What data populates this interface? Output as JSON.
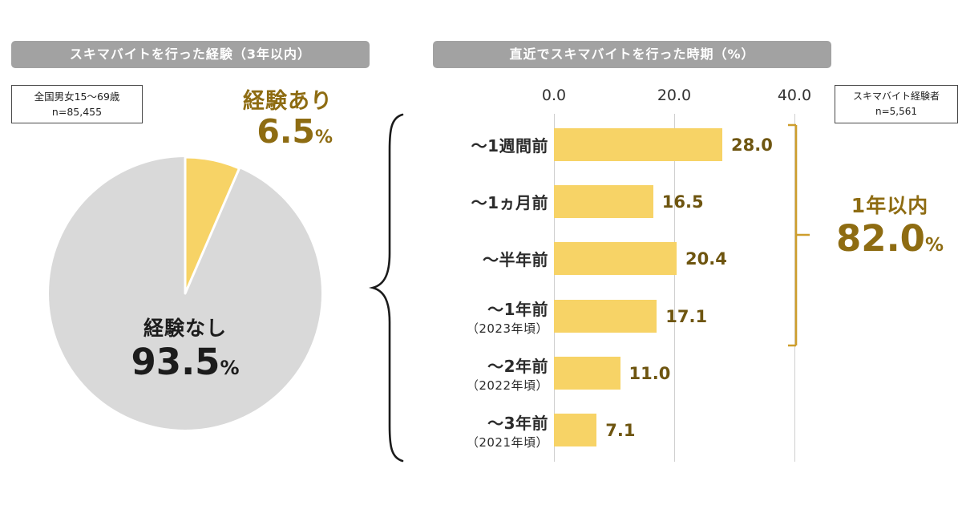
{
  "colors": {
    "bar_yellow": "#F7D366",
    "pie_gray": "#D9D9D9",
    "header_gray": "#A2A2A2",
    "gold_text": "#8E6C12",
    "value_text": "#6E5510",
    "bracket_gold": "#CE9E2C"
  },
  "left_panel": {
    "header": "スキマバイトを行った経験（3年以内）",
    "sample": {
      "line1": "全国男女15～69歳",
      "line2": "n=85,455"
    },
    "slice_yes": {
      "label": "経験あり",
      "value": "6.5",
      "unit": "%"
    },
    "slice_no": {
      "label": "経験なし",
      "value": "93.5",
      "unit": "%"
    }
  },
  "right_panel": {
    "header": "直近でスキマバイトを行った時期（%）",
    "sample": {
      "line1": "スキマバイト経験者",
      "line2": "n=5,561"
    },
    "axis_ticks": [
      "0.0",
      "20.0",
      "40.0"
    ],
    "rows": [
      {
        "label": "～1週間前",
        "sublabel": "",
        "value": "28.0",
        "numeric": 28.0
      },
      {
        "label": "～1ヵ月前",
        "sublabel": "",
        "value": "16.5",
        "numeric": 16.5
      },
      {
        "label": "～半年前",
        "sublabel": "",
        "value": "20.4",
        "numeric": 20.4
      },
      {
        "label": "～1年前",
        "sublabel": "（2023年頃）",
        "value": "17.1",
        "numeric": 17.1
      },
      {
        "label": "～2年前",
        "sublabel": "（2022年頃）",
        "value": "11.0",
        "numeric": 11.0
      },
      {
        "label": "～3年前",
        "sublabel": "（2021年頃）",
        "value": "7.1",
        "numeric": 7.1
      }
    ],
    "bracket": {
      "label": "1年以内",
      "value": "82.0",
      "unit": "%"
    }
  },
  "chart_data": [
    {
      "type": "pie",
      "title": "スキマバイトを行った経験（3年以内）",
      "labels": [
        "経験あり",
        "経験なし"
      ],
      "values": [
        6.5,
        93.5
      ],
      "colors": [
        "#F7D366",
        "#D9D9D9"
      ],
      "note": "全国男女15～69歳 n=85,455"
    },
    {
      "type": "bar",
      "orientation": "horizontal",
      "title": "直近でスキマバイトを行った時期（%）",
      "categories": [
        "～1週間前",
        "～1ヵ月前",
        "～半年前",
        "～1年前（2023年頃）",
        "～2年前（2022年頃）",
        "～3年前（2021年頃）"
      ],
      "values": [
        28.0,
        16.5,
        20.4,
        17.1,
        11.0,
        7.1
      ],
      "xlabel": "",
      "ylabel": "",
      "xlim": [
        0,
        40
      ],
      "xticks": [
        0.0,
        20.0,
        40.0
      ],
      "grid": true,
      "annotation": {
        "label": "1年以内",
        "value": 82.0,
        "covers_rows": [
          0,
          1,
          2,
          3
        ]
      },
      "note": "スキマバイト経験者 n=5,561"
    }
  ]
}
